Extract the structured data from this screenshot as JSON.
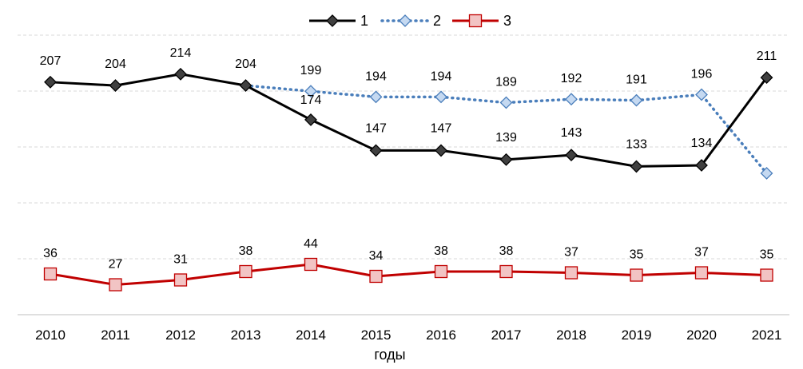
{
  "chart_data": {
    "type": "line",
    "xlabel": "годы",
    "ylabel": "",
    "categories": [
      "2010",
      "2011",
      "2012",
      "2013",
      "2014",
      "2015",
      "2016",
      "2017",
      "2018",
      "2019",
      "2020",
      "2021"
    ],
    "series": [
      {
        "name": "1",
        "color": "#000000",
        "style": "solid",
        "marker": "diamond",
        "values": [
          207,
          204,
          214,
          204,
          174,
          147,
          147,
          139,
          143,
          133,
          134,
          211
        ]
      },
      {
        "name": "2",
        "color": "#4a7ebb",
        "style": "dotted",
        "marker": "diamond",
        "values": [
          null,
          null,
          null,
          204,
          199,
          194,
          194,
          189,
          192,
          191,
          196,
          null
        ],
        "unlabeled_extra": {
          "2021": 127
        }
      },
      {
        "name": "3",
        "color": "#c00000",
        "style": "solid",
        "marker": "square",
        "values": [
          36,
          27,
          31,
          38,
          44,
          34,
          38,
          38,
          37,
          35,
          37,
          35
        ]
      }
    ],
    "legend": {
      "position": "top",
      "entries": [
        "1",
        "2",
        "3"
      ]
    },
    "grid": "horizontal dashed",
    "axis_break": "between 50 and 110"
  }
}
